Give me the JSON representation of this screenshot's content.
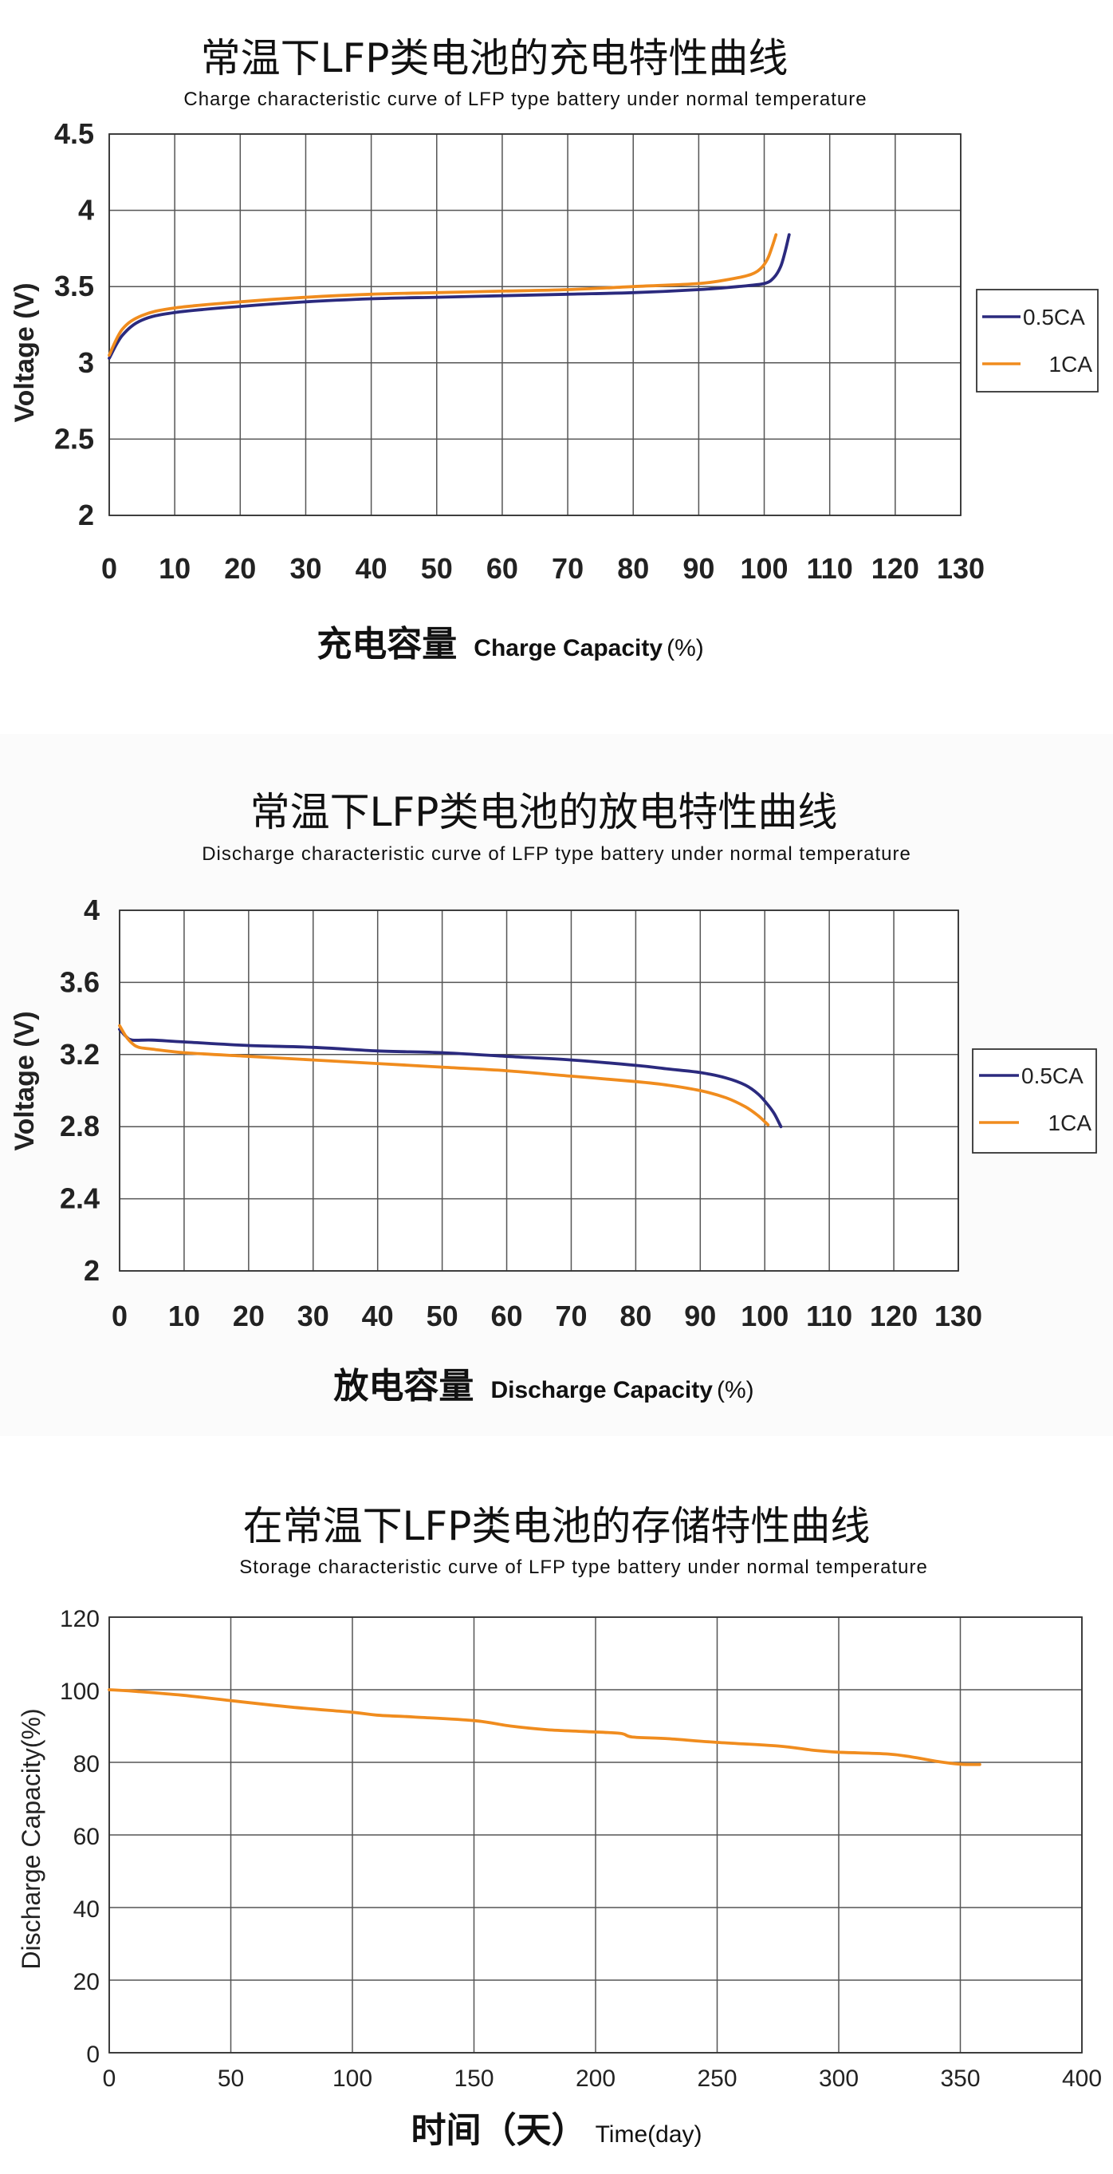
{
  "chart_data": [
    {
      "type": "line",
      "title": "常温下LFP类电池的充电特性曲线",
      "subtitle": "Charge characteristic curve of LFP type battery under normal temperature",
      "xlabel_cn": "充电容量",
      "xlabel_en": "Charge Capacity",
      "xlabel_unit": "(%)",
      "ylabel": "Voltage (V)",
      "xlim": [
        0,
        130
      ],
      "ylim": [
        2,
        4.5
      ],
      "x_ticks": [
        0,
        10,
        20,
        30,
        40,
        50,
        60,
        70,
        80,
        90,
        100,
        110,
        120,
        130
      ],
      "y_ticks": [
        2,
        2.5,
        3,
        3.5,
        4,
        4.5
      ],
      "y_tick_labels": [
        "2",
        "2.5",
        "3",
        "3.5",
        "4",
        "4.5"
      ],
      "grid": true,
      "legend_position": "right",
      "series": [
        {
          "name": "0.5CA",
          "color": "#2b2a7e",
          "x": [
            0,
            2,
            5,
            10,
            20,
            30,
            40,
            50,
            60,
            70,
            80,
            90,
            96,
            100,
            101.5,
            102.5,
            103.2,
            103.8
          ],
          "y": [
            3.03,
            3.18,
            3.28,
            3.33,
            3.37,
            3.4,
            3.42,
            3.43,
            3.44,
            3.45,
            3.46,
            3.48,
            3.5,
            3.52,
            3.56,
            3.63,
            3.73,
            3.84
          ]
        },
        {
          "name": "1CA",
          "color": "#f08c1e",
          "x": [
            0,
            2,
            5,
            10,
            20,
            30,
            40,
            50,
            60,
            70,
            80,
            90,
            95,
            98,
            99.5,
            100.5,
            101.2,
            101.8
          ],
          "y": [
            3.05,
            3.22,
            3.31,
            3.36,
            3.4,
            3.43,
            3.45,
            3.46,
            3.47,
            3.48,
            3.5,
            3.52,
            3.55,
            3.58,
            3.62,
            3.68,
            3.76,
            3.84
          ]
        }
      ]
    },
    {
      "type": "line",
      "title": "常温下LFP类电池的放电特性曲线",
      "subtitle": "Discharge characteristic curve of LFP type battery under normal temperature",
      "xlabel_cn": "放电容量",
      "xlabel_en": "Discharge Capacity",
      "xlabel_unit": "(%)",
      "ylabel": "Voltage (V)",
      "xlim": [
        0,
        130
      ],
      "ylim": [
        2,
        4
      ],
      "x_ticks": [
        0,
        10,
        20,
        30,
        40,
        50,
        60,
        70,
        80,
        90,
        100,
        110,
        120,
        130
      ],
      "y_ticks": [
        2,
        2.4,
        2.8,
        3.2,
        3.6,
        4
      ],
      "y_tick_labels": [
        "2",
        "2.4",
        "2.8",
        "3.2",
        "3.6",
        "4"
      ],
      "grid": true,
      "legend_position": "right",
      "series": [
        {
          "name": "0.5CA",
          "color": "#2b2a7e",
          "x": [
            0,
            1,
            2,
            5,
            10,
            20,
            30,
            40,
            50,
            60,
            70,
            80,
            85,
            90,
            94,
            97,
            99,
            100.5,
            101.5,
            102.5
          ],
          "y": [
            3.34,
            3.3,
            3.28,
            3.28,
            3.27,
            3.25,
            3.24,
            3.22,
            3.21,
            3.19,
            3.17,
            3.14,
            3.12,
            3.1,
            3.07,
            3.03,
            2.98,
            2.92,
            2.87,
            2.8
          ]
        },
        {
          "name": "1CA",
          "color": "#f08c1e",
          "x": [
            0,
            1,
            2,
            3,
            5,
            10,
            20,
            30,
            40,
            50,
            60,
            70,
            80,
            85,
            90,
            94,
            97,
            99,
            100.5
          ],
          "y": [
            3.36,
            3.3,
            3.26,
            3.24,
            3.23,
            3.21,
            3.19,
            3.17,
            3.15,
            3.13,
            3.11,
            3.08,
            3.05,
            3.03,
            3.0,
            2.96,
            2.91,
            2.86,
            2.81
          ]
        }
      ]
    },
    {
      "type": "line",
      "title": "在常温下LFP类电池的存储特性曲线",
      "subtitle": "Storage characteristic curve of LFP type battery under normal temperature",
      "xlabel_cn": "时间（天）",
      "xlabel_en": "Time(day)",
      "ylabel": "Discharge Capacity(%)",
      "xlim": [
        0,
        400
      ],
      "ylim": [
        0,
        120
      ],
      "x_ticks": [
        0,
        50,
        100,
        150,
        200,
        250,
        300,
        350,
        400
      ],
      "y_ticks": [
        0,
        20,
        40,
        60,
        80,
        100,
        120
      ],
      "y_tick_labels": [
        "0",
        "20",
        "40",
        "60",
        "80",
        "100",
        "120"
      ],
      "grid": true,
      "series": [
        {
          "color": "#f08c1e",
          "x": [
            0,
            10,
            30,
            50,
            75,
            100,
            110,
            125,
            150,
            165,
            180,
            195,
            210,
            215,
            230,
            250,
            275,
            290,
            300,
            320,
            330,
            340,
            350,
            358
          ],
          "y": [
            100,
            99.6,
            98.5,
            97,
            95.2,
            93.8,
            93,
            92.5,
            91.5,
            90,
            89,
            88.5,
            88,
            87,
            86.5,
            85.5,
            84.5,
            83.3,
            82.8,
            82.3,
            81.5,
            80.3,
            79.5,
            79.4
          ]
        }
      ]
    }
  ]
}
